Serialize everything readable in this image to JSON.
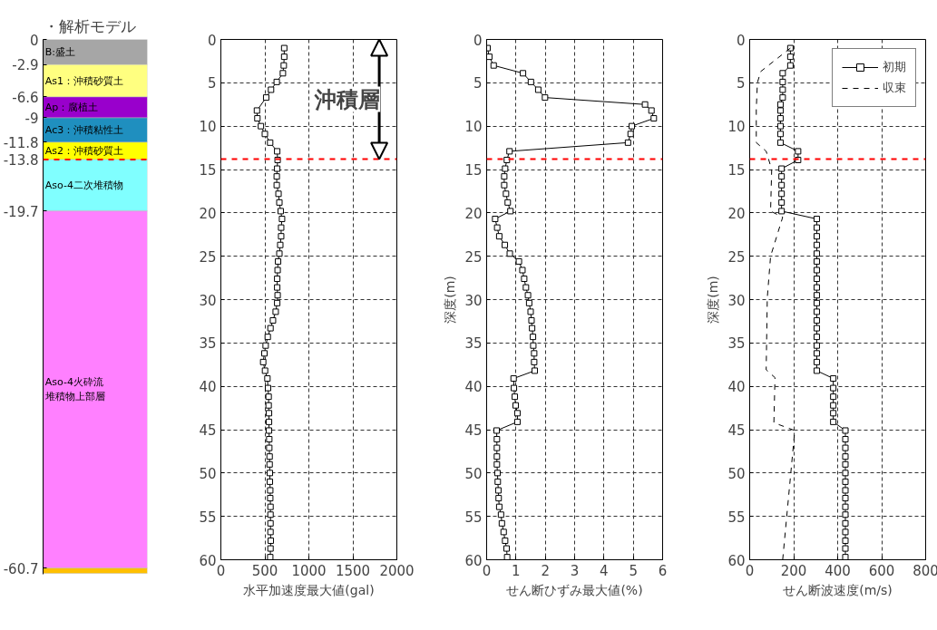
{
  "chart_data": [
    {
      "type": "bar",
      "title": "・解析モデル",
      "categories": [
        null
      ],
      "stacked": true,
      "ylim": [
        -61.4,
        0
      ],
      "yticks": [
        0,
        -2.9,
        -6.6,
        -9,
        -11.8,
        -13.8,
        -19.7,
        -60.7
      ],
      "tick_labels": "y",
      "grid": false,
      "series": [
        {
          "name": "B:盛土",
          "color": "#a6a6a6",
          "values": [
            -2.9
          ]
        },
        {
          "name": "As1：沖積砂質土",
          "color": "#ffff80",
          "values": [
            -3.7
          ]
        },
        {
          "name": "Ap：腐植土",
          "color": "#9900cc",
          "values": [
            -2.4
          ]
        },
        {
          "name": "Ac3：沖積粘性土",
          "color": "#1f8fbf",
          "values": [
            -2.8
          ]
        },
        {
          "name": "As2：沖積砂質土",
          "color": "#ffff00",
          "values": [
            -2.0
          ]
        },
        {
          "name": "Aso-4二次堆積物",
          "color": "#80ffff",
          "values": [
            -5.9
          ]
        },
        {
          "name": "Aso-4火砕流堆積物上部層",
          "color": "#ff80ff",
          "values": [
            -41.0
          ]
        },
        {
          "color": "#ffc000",
          "values": [
            -0.6
          ]
        }
      ],
      "ref_lines": [
        {
          "axis": "y",
          "value": -13.8,
          "color": "#ff0000",
          "line_style": "dashed"
        }
      ]
    },
    {
      "type": "line",
      "xlabel": "水平加速度最大値(gal)",
      "xlim": [
        0,
        2000
      ],
      "xticks": [
        0,
        500,
        1000,
        1500,
        2000
      ],
      "ylim": [
        60,
        0
      ],
      "yticks": [
        0,
        5,
        10,
        15,
        20,
        25,
        30,
        35,
        40,
        45,
        50,
        55,
        60
      ],
      "grid": true,
      "marker": "square",
      "line_style": "solid",
      "series": [
        {
          "color": "#000000",
          "x": [
            720,
            720,
            715,
            705,
            635,
            570,
            515,
            410,
            415,
            455,
            500,
            560,
            640,
            645,
            640,
            635,
            635,
            655,
            665,
            680,
            695,
            685,
            685,
            675,
            665,
            650,
            645,
            640,
            640,
            645,
            640,
            623,
            592,
            564,
            533,
            509,
            495,
            481,
            502,
            529,
            536,
            543,
            543,
            547,
            547,
            547,
            550,
            550,
            554,
            554,
            557,
            557,
            561,
            561,
            564,
            564,
            564,
            564,
            567,
            564,
            561
          ],
          "values": [
            1,
            2,
            3,
            3.9,
            4.9,
            5.8,
            6.7,
            8.2,
            9.1,
            10,
            10.9,
            11.9,
            12.9,
            13.9,
            14.9,
            15.8,
            16.8,
            17.8,
            18.8,
            19.8,
            20.7,
            21.7,
            22.7,
            23.7,
            24.7,
            25.6,
            26.6,
            27.6,
            28.6,
            29.5,
            30.4,
            31.4,
            32.4,
            33.3,
            34.3,
            35.3,
            36.2,
            37.2,
            38.2,
            39.1,
            40.2,
            41.2,
            42.2,
            43.1,
            44.1,
            45.1,
            46.1,
            47.1,
            48.1,
            49,
            50,
            51,
            52,
            52.9,
            53.9,
            54.8,
            55.8,
            56.8,
            57.8,
            58.7,
            59.7
          ]
        }
      ],
      "ref_lines": [
        {
          "axis": "y",
          "value": 13.8,
          "color": "#ff0000",
          "line_style": "dashed"
        }
      ],
      "annotations": [
        "沖積層"
      ]
    },
    {
      "type": "line",
      "xlabel": "せん断ひずみ最大値(%)",
      "ylabel": "深度(m)",
      "xlim": [
        0,
        6
      ],
      "xticks": [
        0,
        1,
        2,
        3,
        4,
        5,
        6
      ],
      "ylim": [
        60,
        0
      ],
      "yticks": [
        0,
        5,
        10,
        15,
        20,
        25,
        30,
        35,
        40,
        45,
        50,
        55,
        60
      ],
      "grid": true,
      "marker": "square",
      "line_style": "solid",
      "series": [
        {
          "color": "#000000",
          "x": [
            0.03,
            0.09,
            0.24,
            1.24,
            1.51,
            1.76,
            1.99,
            5.4,
            5.62,
            5.7,
            4.95,
            4.91,
            4.82,
            0.78,
            0.69,
            0.63,
            0.6,
            0.6,
            0.66,
            0.72,
            0.81,
            0.29,
            0.36,
            0.43,
            0.62,
            0.79,
            1.1,
            1.22,
            1.28,
            1.34,
            1.41,
            1.45,
            1.5,
            1.53,
            1.55,
            1.58,
            1.59,
            1.62,
            1.62,
            1.64,
            0.92,
            0.93,
            0.96,
            0.99,
            1.05,
            1.05,
            0.34,
            0.35,
            0.35,
            0.35,
            0.35,
            0.37,
            0.38,
            0.4,
            0.41,
            0.43,
            0.49,
            0.52,
            0.58,
            0.63,
            0.68,
            0.7
          ],
          "values": [
            1,
            2,
            3,
            3.9,
            4.9,
            5.8,
            6.7,
            7.5,
            8.2,
            9.1,
            10,
            10.9,
            11.9,
            12.9,
            13.9,
            14.9,
            15.8,
            16.8,
            17.8,
            18.8,
            19.8,
            20.7,
            21.7,
            22.7,
            23.7,
            24.7,
            25.6,
            26.6,
            27.6,
            28.6,
            29.5,
            30.4,
            31.4,
            32.4,
            33.3,
            34.3,
            35.3,
            36.2,
            37.2,
            38.2,
            39.1,
            40.2,
            41.2,
            42.2,
            43.1,
            44.1,
            45.1,
            46.1,
            47.1,
            48.1,
            49,
            50,
            51,
            52,
            52.9,
            53.9,
            54.8,
            55.8,
            56.8,
            57.8,
            58.7,
            59.7
          ]
        }
      ],
      "ref_lines": [
        {
          "axis": "y",
          "value": 13.8,
          "color": "#ff0000",
          "line_style": "dashed"
        }
      ]
    },
    {
      "type": "line",
      "xlabel": "せん断波速度(m/s)",
      "ylabel": "深度(m)",
      "xlim": [
        0,
        800
      ],
      "xticks": [
        0,
        200,
        400,
        600,
        800
      ],
      "ylim": [
        60,
        0
      ],
      "yticks": [
        0,
        5,
        10,
        15,
        20,
        25,
        30,
        35,
        40,
        45,
        50,
        55,
        60
      ],
      "grid": true,
      "marker": "square",
      "line_style": "solid",
      "legend": "top right",
      "series": [
        {
          "name": "初期",
          "color": "#000000",
          "x": [
            185,
            185,
            185,
            150,
            150,
            150,
            150,
            140,
            140,
            140,
            140,
            140,
            140,
            220,
            220,
            145,
            145,
            145,
            145,
            145,
            145,
            305,
            305,
            305,
            305,
            305,
            305,
            305,
            305,
            305,
            305,
            305,
            305,
            305,
            305,
            305,
            305,
            305,
            305,
            305,
            380,
            380,
            380,
            380,
            380,
            380,
            435,
            435,
            435,
            435,
            435,
            435,
            435,
            435,
            435,
            435,
            435,
            435,
            435,
            435,
            435,
            435
          ],
          "values": [
            1,
            2,
            3,
            3.9,
            4.9,
            5.8,
            6.7,
            7.5,
            8.2,
            9.1,
            10,
            10.9,
            11.9,
            12.9,
            13.9,
            14.9,
            15.8,
            16.8,
            17.8,
            18.8,
            19.8,
            20.7,
            21.7,
            22.7,
            23.7,
            24.7,
            25.6,
            26.6,
            27.6,
            28.6,
            29.5,
            30.4,
            31.4,
            32.4,
            33.3,
            34.3,
            35.3,
            36.2,
            37.2,
            38.2,
            39.1,
            40.2,
            41.2,
            42.2,
            43.1,
            44.1,
            45.1,
            46.1,
            47.1,
            48.1,
            49,
            50,
            51,
            52,
            52.9,
            53.9,
            54.8,
            55.8,
            56.8,
            57.8,
            58.7,
            59.7
          ]
        },
        {
          "name": "収束",
          "color": "#000000",
          "marker": "none",
          "line_style": "dashed",
          "x": [
            185,
            50,
            35,
            30,
            30,
            75,
            100,
            95,
            150,
            95,
            80,
            75,
            115,
            110,
            205,
            150
          ],
          "values": [
            1,
            3.7,
            5,
            8,
            11.9,
            12.9,
            15,
            19.8,
            20.5,
            25,
            29.8,
            38.1,
            39,
            44.2,
            45.1,
            60
          ]
        }
      ],
      "ref_lines": [
        {
          "axis": "y",
          "value": 13.8,
          "color": "#ff0000",
          "line_style": "dashed"
        }
      ]
    }
  ]
}
